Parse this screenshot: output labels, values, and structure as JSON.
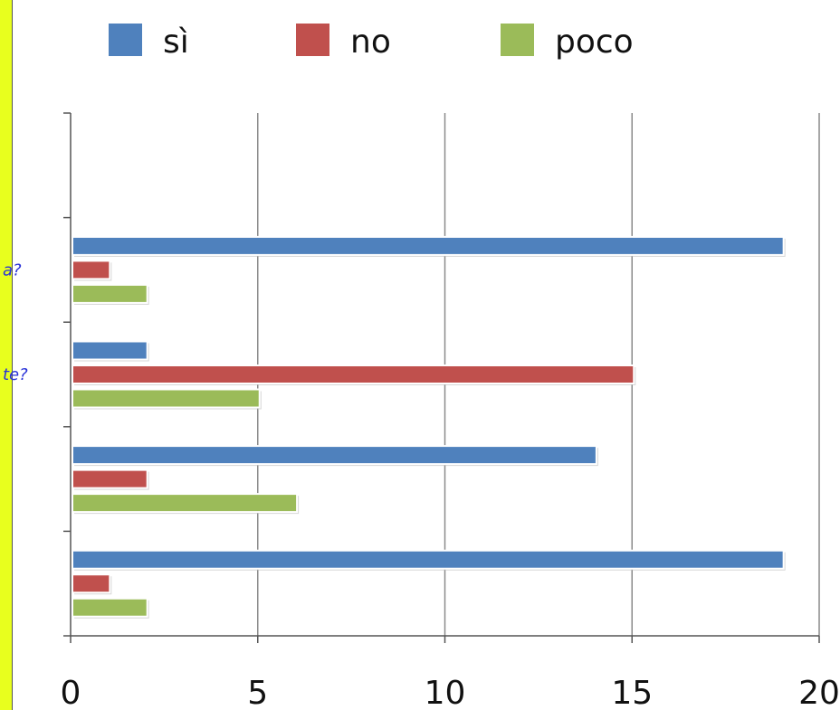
{
  "chart_data": {
    "type": "bar",
    "orientation": "horizontal",
    "categories": [
      "",
      "",
      "te?",
      "a?"
    ],
    "series": [
      {
        "name": "sì",
        "color": "#4f81bd",
        "values": [
          19,
          14,
          2,
          19
        ]
      },
      {
        "name": "no",
        "color": "#c0504d",
        "values": [
          1,
          2,
          15,
          1
        ]
      },
      {
        "name": "poco",
        "color": "#9bbb59",
        "values": [
          2,
          6,
          5,
          2
        ]
      }
    ],
    "xlim": [
      0,
      20
    ],
    "xticks": [
      "0",
      "5",
      "10",
      "15",
      "20"
    ],
    "grid": true,
    "legend_position": "top"
  },
  "colors": {
    "frame": "#e8ff1e",
    "category_label": "#2a33d8"
  }
}
